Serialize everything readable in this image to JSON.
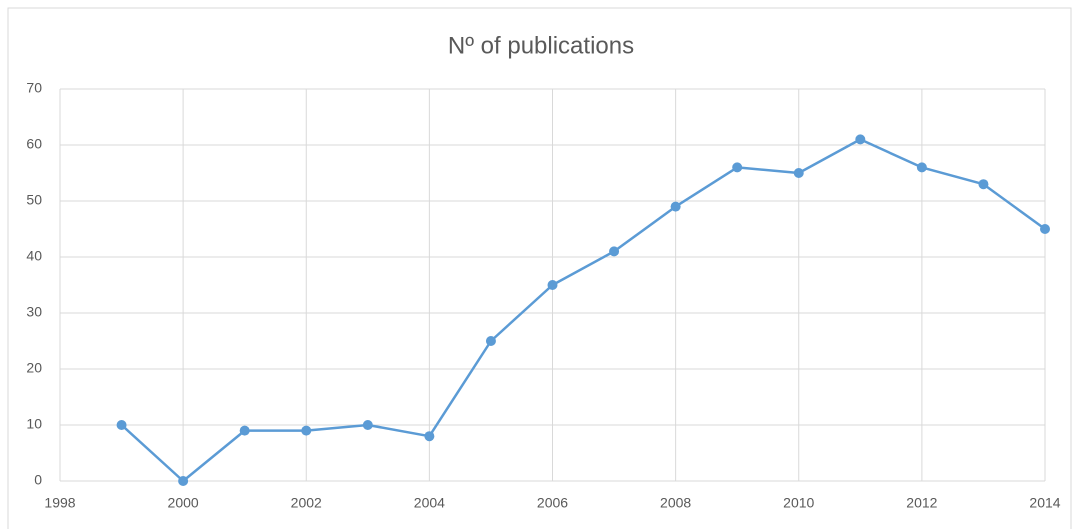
{
  "chart_data": {
    "type": "line",
    "title": "Nº of publications",
    "x": [
      1999,
      2000,
      2001,
      2002,
      2003,
      2004,
      2005,
      2006,
      2007,
      2008,
      2009,
      2010,
      2011,
      2012,
      2013,
      2014
    ],
    "series": [
      {
        "name": "Nº of publications",
        "color": "#5b9bd5",
        "values": [
          10,
          0,
          9,
          9,
          10,
          8,
          25,
          35,
          41,
          49,
          56,
          55,
          61,
          56,
          53,
          45
        ]
      }
    ],
    "xlim": [
      1998,
      2014
    ],
    "xticks": [
      1998,
      2000,
      2002,
      2004,
      2006,
      2008,
      2010,
      2012,
      2014
    ],
    "ylim": [
      0,
      70
    ],
    "yticks": [
      0,
      10,
      20,
      30,
      40,
      50,
      60,
      70
    ],
    "grid": true
  }
}
